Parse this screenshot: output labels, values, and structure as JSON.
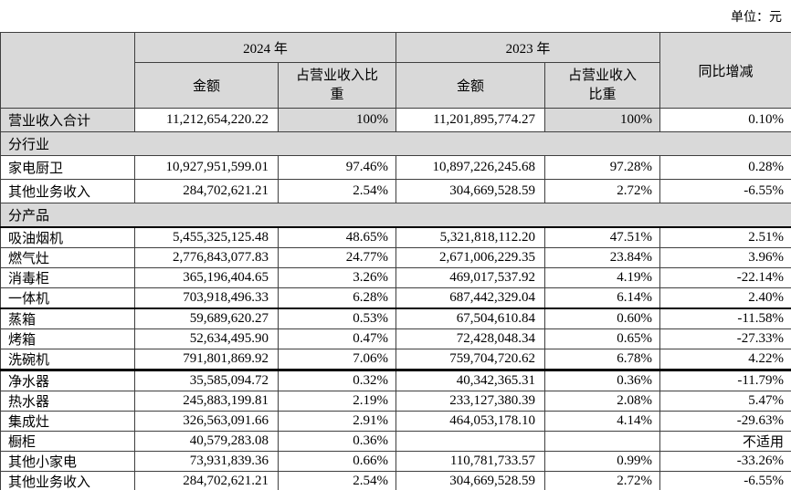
{
  "page": {
    "unit_label": "单位：元"
  },
  "table": {
    "header": {
      "year_2024": "2024 年",
      "year_2023": "2023 年",
      "amount": "金额",
      "proportion": "占营业收入比重",
      "yoy": "同比增减"
    },
    "rows": [
      {
        "type": "total",
        "label": "营业收入合计",
        "a24": "11,212,654,220.22",
        "p24": "100%",
        "a23": "11,201,895,774.27",
        "p23": "100%",
        "yoy": "0.10%"
      },
      {
        "type": "section",
        "label": "分行业"
      },
      {
        "type": "data",
        "label": "家电厨卫",
        "a24": "10,927,951,599.01",
        "p24": "97.46%",
        "a23": "10,897,226,245.68",
        "p23": "97.28%",
        "yoy": "0.28%"
      },
      {
        "type": "data",
        "label": "其他业务收入",
        "a24": "284,702,621.21",
        "p24": "2.54%",
        "a23": "304,669,528.59",
        "p23": "2.72%",
        "yoy": "-6.55%"
      },
      {
        "type": "section",
        "label": "分产品"
      },
      {
        "type": "data",
        "label": "吸油烟机",
        "a24": "5,455,325,125.48",
        "p24": "48.65%",
        "a23": "5,321,818,112.20",
        "p23": "47.51%",
        "yoy": "2.51%"
      },
      {
        "type": "data",
        "label": "燃气灶",
        "a24": "2,776,843,077.83",
        "p24": "24.77%",
        "a23": "2,671,006,229.35",
        "p23": "23.84%",
        "yoy": "3.96%"
      },
      {
        "type": "data",
        "label": "消毒柜",
        "a24": "365,196,404.65",
        "p24": "3.26%",
        "a23": "469,017,537.92",
        "p23": "4.19%",
        "yoy": "-22.14%"
      },
      {
        "type": "data",
        "label": "一体机",
        "a24": "703,918,496.33",
        "p24": "6.28%",
        "a23": "687,442,329.04",
        "p23": "6.14%",
        "yoy": "2.40%"
      },
      {
        "type": "data",
        "label": "蒸箱",
        "a24": "59,689,620.27",
        "p24": "0.53%",
        "a23": "67,504,610.84",
        "p23": "0.60%",
        "yoy": "-11.58%"
      },
      {
        "type": "data",
        "label": "烤箱",
        "a24": "52,634,495.90",
        "p24": "0.47%",
        "a23": "72,428,048.34",
        "p23": "0.65%",
        "yoy": "-27.33%"
      },
      {
        "type": "data",
        "label": "洗碗机",
        "a24": "791,801,869.92",
        "p24": "7.06%",
        "a23": "759,704,720.62",
        "p23": "6.78%",
        "yoy": "4.22%"
      },
      {
        "type": "data",
        "label": "净水器",
        "a24": "35,585,094.72",
        "p24": "0.32%",
        "a23": "40,342,365.31",
        "p23": "0.36%",
        "yoy": "-11.79%"
      },
      {
        "type": "data",
        "label": "热水器",
        "a24": "245,883,199.81",
        "p24": "2.19%",
        "a23": "233,127,380.39",
        "p23": "2.08%",
        "yoy": "5.47%"
      },
      {
        "type": "data",
        "label": "集成灶",
        "a24": "326,563,091.66",
        "p24": "2.91%",
        "a23": "464,053,178.10",
        "p23": "4.14%",
        "yoy": "-29.63%"
      },
      {
        "type": "data",
        "label": "橱柜",
        "a24": "40,579,283.08",
        "p24": "0.36%",
        "a23": "",
        "p23": "",
        "yoy": "不适用"
      },
      {
        "type": "data",
        "label": "其他小家电",
        "a24": "73,931,839.36",
        "p24": "0.66%",
        "a23": "110,781,733.57",
        "p23": "0.99%",
        "yoy": "-33.26%"
      },
      {
        "type": "data",
        "label": "其他业务收入",
        "a24": "284,702,621.21",
        "p24": "2.54%",
        "a23": "304,669,528.59",
        "p23": "2.72%",
        "yoy": "-6.55%"
      }
    ]
  },
  "colors": {
    "header_bg": "#d9d9d9",
    "section_bg": "#d9d9d9",
    "text": "#000000",
    "border": "#000000"
  }
}
